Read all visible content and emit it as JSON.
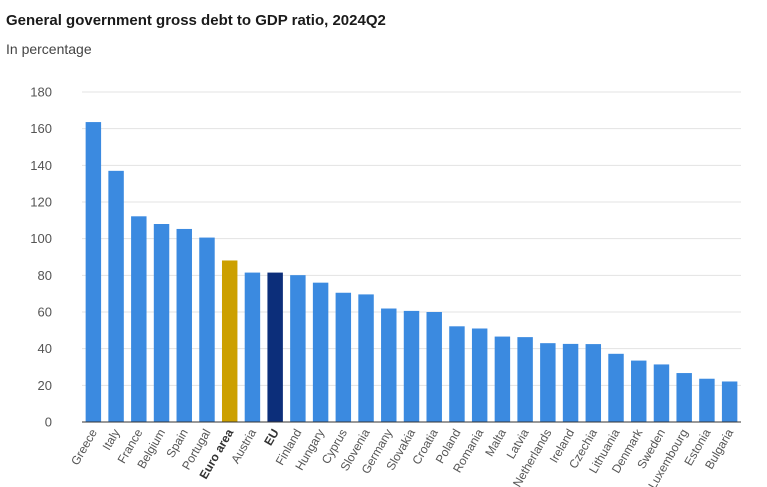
{
  "title": "General government gross debt to GDP ratio, 2024Q2",
  "subtitle": "In percentage",
  "colors": {
    "default": "#3b8ae0",
    "euro_area": "#cca000",
    "eu": "#0c2e7a"
  },
  "chart_data": {
    "type": "bar",
    "title": "General government gross debt to GDP ratio, 2024Q2",
    "subtitle": "In percentage",
    "xlabel": "",
    "ylabel": "",
    "ylim": [
      0,
      180
    ],
    "yticks": [
      0,
      20,
      40,
      60,
      80,
      100,
      120,
      140,
      160,
      180
    ],
    "grid": true,
    "categories": [
      "Greece",
      "Italy",
      "France",
      "Belgium",
      "Spain",
      "Portugal",
      "Euro area",
      "Austria",
      "EU",
      "Finland",
      "Hungary",
      "Cyprus",
      "Slovenia",
      "Germany",
      "Slovakia",
      "Croatia",
      "Poland",
      "Romania",
      "Malta",
      "Latvia",
      "Netherlands",
      "Ireland",
      "Czechia",
      "Lithuania",
      "Denmark",
      "Sweden",
      "Luxembourg",
      "Estonia",
      "Bulgaria"
    ],
    "values": [
      163.6,
      137.0,
      112.2,
      108.0,
      105.3,
      100.6,
      88.1,
      81.5,
      81.5,
      80.1,
      76.0,
      70.5,
      69.6,
      61.9,
      60.6,
      60.0,
      52.2,
      51.0,
      46.6,
      46.3,
      43.0,
      42.6,
      42.5,
      37.2,
      33.5,
      31.4,
      26.7,
      23.6,
      22.1
    ],
    "bold_categories": [
      "Euro area",
      "EU"
    ]
  }
}
